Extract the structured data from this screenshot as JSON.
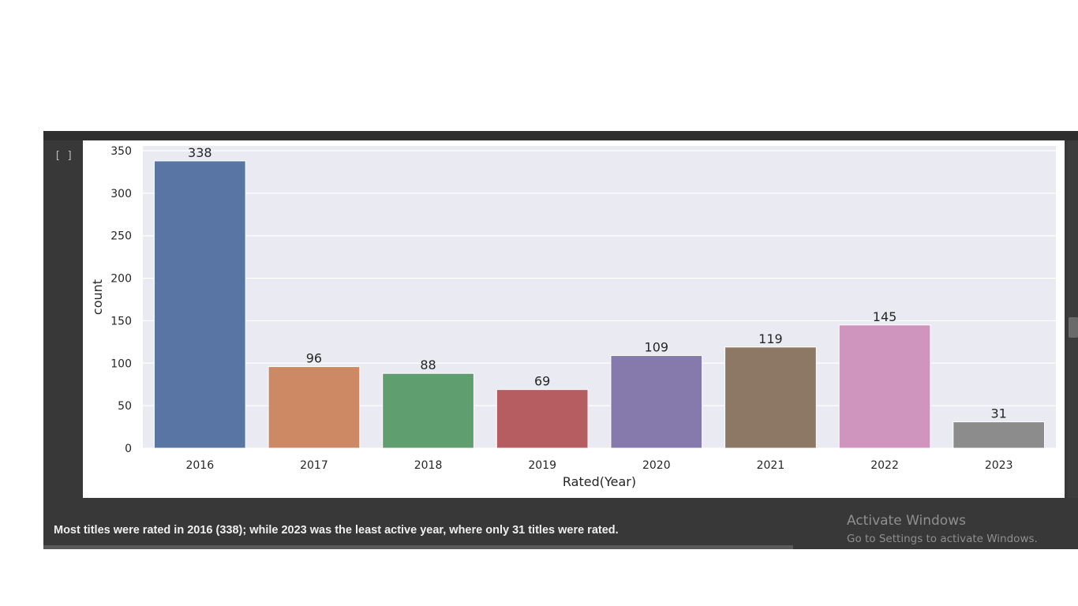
{
  "cell": {
    "gutter": "[ ]"
  },
  "chart_data": {
    "type": "bar",
    "categories": [
      "2016",
      "2017",
      "2018",
      "2019",
      "2020",
      "2021",
      "2022",
      "2023"
    ],
    "values": [
      338,
      96,
      88,
      69,
      109,
      119,
      145,
      31
    ],
    "colors": [
      "#5975a4",
      "#cc8963",
      "#5f9e6e",
      "#b55d60",
      "#857aab",
      "#8d7866",
      "#d095bf",
      "#8c8c8c"
    ],
    "xlabel": "Rated(Year)",
    "ylabel": "count",
    "ylim": [
      0,
      350
    ],
    "yticks": [
      0,
      50,
      100,
      150,
      200,
      250,
      300,
      350
    ],
    "grid": true,
    "data_labels": true,
    "background": "#eaeaf2"
  },
  "caption": "Most titles were rated in 2016 (338); while 2023 was the least active year, where only 31 titles were rated.",
  "watermark": {
    "title": "Activate Windows",
    "subtitle": "Go to Settings to activate Windows."
  }
}
